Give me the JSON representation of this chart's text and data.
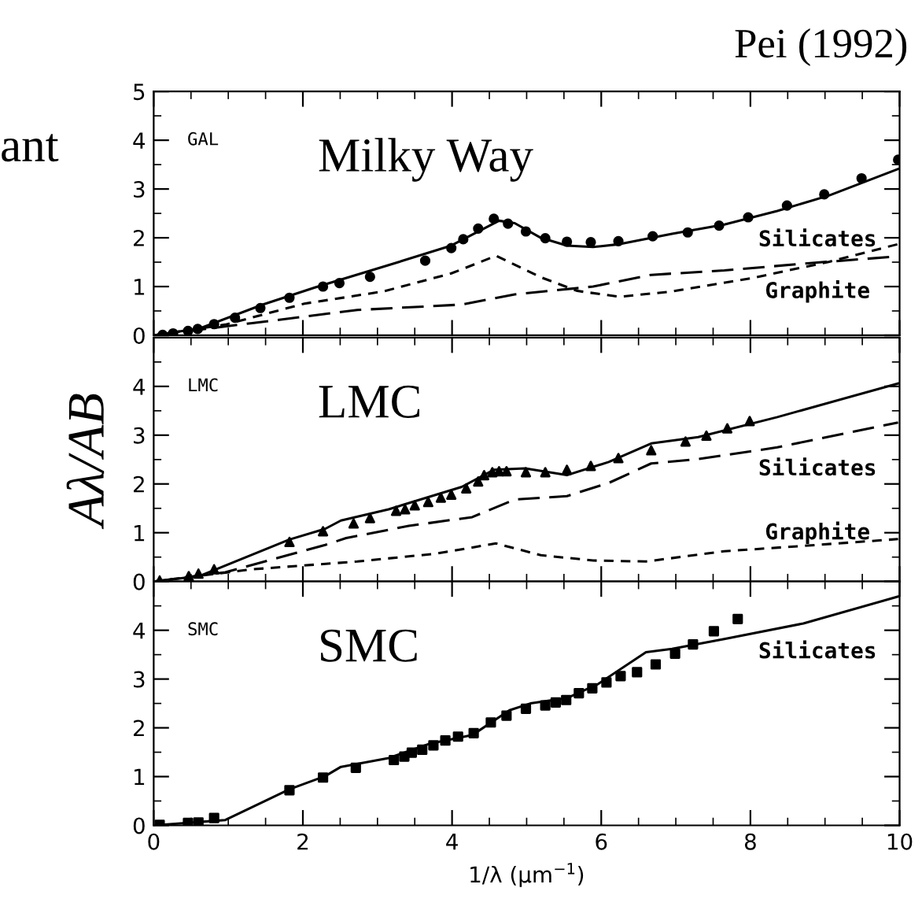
{
  "chart_data": [
    {
      "type": "line",
      "title": "Pei (1992)",
      "annotations": [
        "GAL",
        "Milky Way",
        "Silicates",
        "Graphite",
        "ant"
      ],
      "xlim": [
        0,
        10
      ],
      "ylim": [
        0,
        5
      ],
      "xticks": [
        0,
        2,
        4,
        6,
        8,
        10
      ],
      "yticks": [
        0,
        1,
        2,
        3,
        4,
        5
      ],
      "tick_labels": "y",
      "series": [
        {
          "type": "scatter",
          "marker": "circle",
          "color": "#000000",
          "x": [
            0.12,
            0.26,
            0.46,
            0.59,
            0.81,
            1.09,
            1.43,
            1.82,
            2.27,
            2.49,
            2.9,
            3.64,
            3.99,
            4.15,
            4.35,
            4.56,
            4.75,
            4.99,
            5.25,
            5.54,
            5.86,
            6.23,
            6.69,
            7.16,
            7.58,
            7.97,
            8.49,
            8.99,
            9.49,
            9.98
          ],
          "values": [
            0.01,
            0.04,
            0.09,
            0.13,
            0.23,
            0.36,
            0.56,
            0.77,
            1.0,
            1.07,
            1.2,
            1.53,
            1.79,
            1.97,
            2.19,
            2.39,
            2.29,
            2.13,
            1.99,
            1.92,
            1.91,
            1.93,
            2.03,
            2.11,
            2.25,
            2.42,
            2.66,
            2.89,
            3.22,
            3.6
          ]
        },
        {
          "line_style": "solid",
          "color": "#000000",
          "x": [
            0,
            0.61,
            1.46,
            2.16,
            3.15,
            3.99,
            4.63,
            4.84,
            5.19,
            5.54,
            5.89,
            6.25,
            6.95,
            7.65,
            8.36,
            9.06,
            9.98
          ],
          "values": [
            0,
            0.14,
            0.63,
            0.98,
            1.44,
            1.84,
            2.35,
            2.3,
            2.0,
            1.84,
            1.81,
            1.87,
            2.08,
            2.27,
            2.55,
            2.87,
            3.41
          ]
        },
        {
          "line_style": "dashed",
          "color": "#000000",
          "x": [
            0,
            1.32,
            2.73,
            4.13,
            4.84,
            5.89,
            6.67,
            7.65,
            8.71,
            9.98
          ],
          "values": [
            0,
            0.25,
            0.52,
            0.63,
            0.84,
            1.0,
            1.24,
            1.33,
            1.47,
            1.62
          ]
        },
        {
          "line_style": "dotted",
          "color": "#000000",
          "x": [
            0,
            0.96,
            2.02,
            3.08,
            3.99,
            4.59,
            5.19,
            5.68,
            6.25,
            6.95,
            8.01,
            9.06,
            9.98
          ],
          "values": [
            0,
            0.22,
            0.65,
            0.9,
            1.27,
            1.63,
            1.19,
            0.91,
            0.79,
            0.9,
            1.17,
            1.51,
            1.87
          ]
        }
      ]
    },
    {
      "type": "line",
      "ylabel": "Aλ/AB",
      "annotations": [
        "LMC",
        "LMC",
        "Silicates",
        "Graphite"
      ],
      "xlim": [
        0,
        10
      ],
      "ylim": [
        0,
        5
      ],
      "xticks": [
        0,
        2,
        4,
        6,
        8,
        10
      ],
      "yticks": [
        0,
        1,
        2,
        3,
        4,
        {
          "value": 5,
          "label": null
        }
      ],
      "tick_labels": "y",
      "series": [
        {
          "type": "scatter",
          "marker": "triangle",
          "color": "#000000",
          "x": [
            0.08,
            0.47,
            0.6,
            0.81,
            1.82,
            2.27,
            2.68,
            2.9,
            3.25,
            3.37,
            3.5,
            3.68,
            3.85,
            3.99,
            4.19,
            4.35,
            4.43,
            4.54,
            4.63,
            4.73,
            4.99,
            5.25,
            5.54,
            5.86,
            6.23,
            6.67,
            7.13,
            7.41,
            7.69,
            7.99
          ],
          "values": [
            0.02,
            0.11,
            0.16,
            0.25,
            0.81,
            1.03,
            1.19,
            1.3,
            1.45,
            1.48,
            1.56,
            1.63,
            1.72,
            1.78,
            1.91,
            2.05,
            2.18,
            2.24,
            2.26,
            2.26,
            2.24,
            2.24,
            2.29,
            2.37,
            2.53,
            2.69,
            2.87,
            2.99,
            3.14,
            3.29
          ]
        },
        {
          "line_style": "solid",
          "color": "#000000",
          "x": [
            0,
            0.61,
            1.82,
            2.3,
            2.51,
            3.15,
            4.13,
            4.56,
            4.98,
            5.54,
            6.1,
            6.67,
            7.3,
            8.36,
            9.98
          ],
          "values": [
            0,
            0.11,
            0.86,
            1.08,
            1.25,
            1.48,
            1.94,
            2.29,
            2.32,
            2.18,
            2.45,
            2.83,
            2.96,
            3.37,
            4.06
          ]
        },
        {
          "line_style": "dashed",
          "color": "#000000",
          "x": [
            0,
            0.96,
            2.3,
            2.58,
            3.42,
            4.27,
            4.84,
            5.54,
            6.1,
            6.67,
            7.3,
            8.36,
            9.98
          ],
          "values": [
            0,
            0.19,
            0.75,
            0.89,
            1.14,
            1.32,
            1.68,
            1.75,
            2.02,
            2.42,
            2.51,
            2.75,
            3.26
          ]
        },
        {
          "line_style": "dotted",
          "color": "#000000",
          "x": [
            0,
            1.32,
            2.73,
            3.78,
            4.59,
            5.19,
            5.89,
            6.6,
            7.65,
            8.71,
            9.98
          ],
          "values": [
            0,
            0.25,
            0.41,
            0.57,
            0.78,
            0.54,
            0.43,
            0.41,
            0.62,
            0.73,
            0.87
          ]
        }
      ]
    },
    {
      "type": "line",
      "xlabel": "1/λ (μm$^{−1}$)",
      "annotations": [
        "SMC",
        "SMC",
        "Silicates"
      ],
      "xlim": [
        0,
        10
      ],
      "ylim": [
        0,
        5
      ],
      "xticks": [
        0,
        2,
        4,
        6,
        8,
        10
      ],
      "yticks": [
        0,
        1,
        2,
        3,
        4,
        {
          "value": 5,
          "label": null
        }
      ],
      "series": [
        {
          "type": "scatter",
          "marker": "square",
          "color": "#000000",
          "x": [
            0.08,
            0.46,
            0.6,
            0.81,
            1.82,
            2.27,
            2.71,
            3.22,
            3.36,
            3.46,
            3.6,
            3.75,
            3.91,
            4.08,
            4.29,
            4.52,
            4.73,
            4.99,
            5.25,
            5.39,
            5.53,
            5.7,
            5.88,
            6.07,
            6.26,
            6.48,
            6.73,
            6.99,
            7.23,
            7.51,
            7.83
          ],
          "values": [
            0.01,
            0.05,
            0.06,
            0.15,
            0.72,
            0.98,
            1.18,
            1.34,
            1.41,
            1.49,
            1.55,
            1.64,
            1.74,
            1.82,
            1.89,
            2.11,
            2.25,
            2.39,
            2.46,
            2.52,
            2.57,
            2.71,
            2.81,
            2.93,
            3.06,
            3.14,
            3.3,
            3.52,
            3.71,
            3.98,
            4.23
          ]
        },
        {
          "line_style": "solid",
          "color": "#000000",
          "x": [
            0,
            0.96,
            1.82,
            2.3,
            2.51,
            3.15,
            3.71,
            4.27,
            4.77,
            5.05,
            5.54,
            5.96,
            6.6,
            6.95,
            7.65,
            8.71,
            10
          ],
          "values": [
            0,
            0.11,
            0.74,
            1.01,
            1.2,
            1.38,
            1.68,
            1.85,
            2.36,
            2.5,
            2.61,
            2.9,
            3.55,
            3.62,
            3.82,
            4.14,
            4.7
          ]
        }
      ]
    }
  ]
}
